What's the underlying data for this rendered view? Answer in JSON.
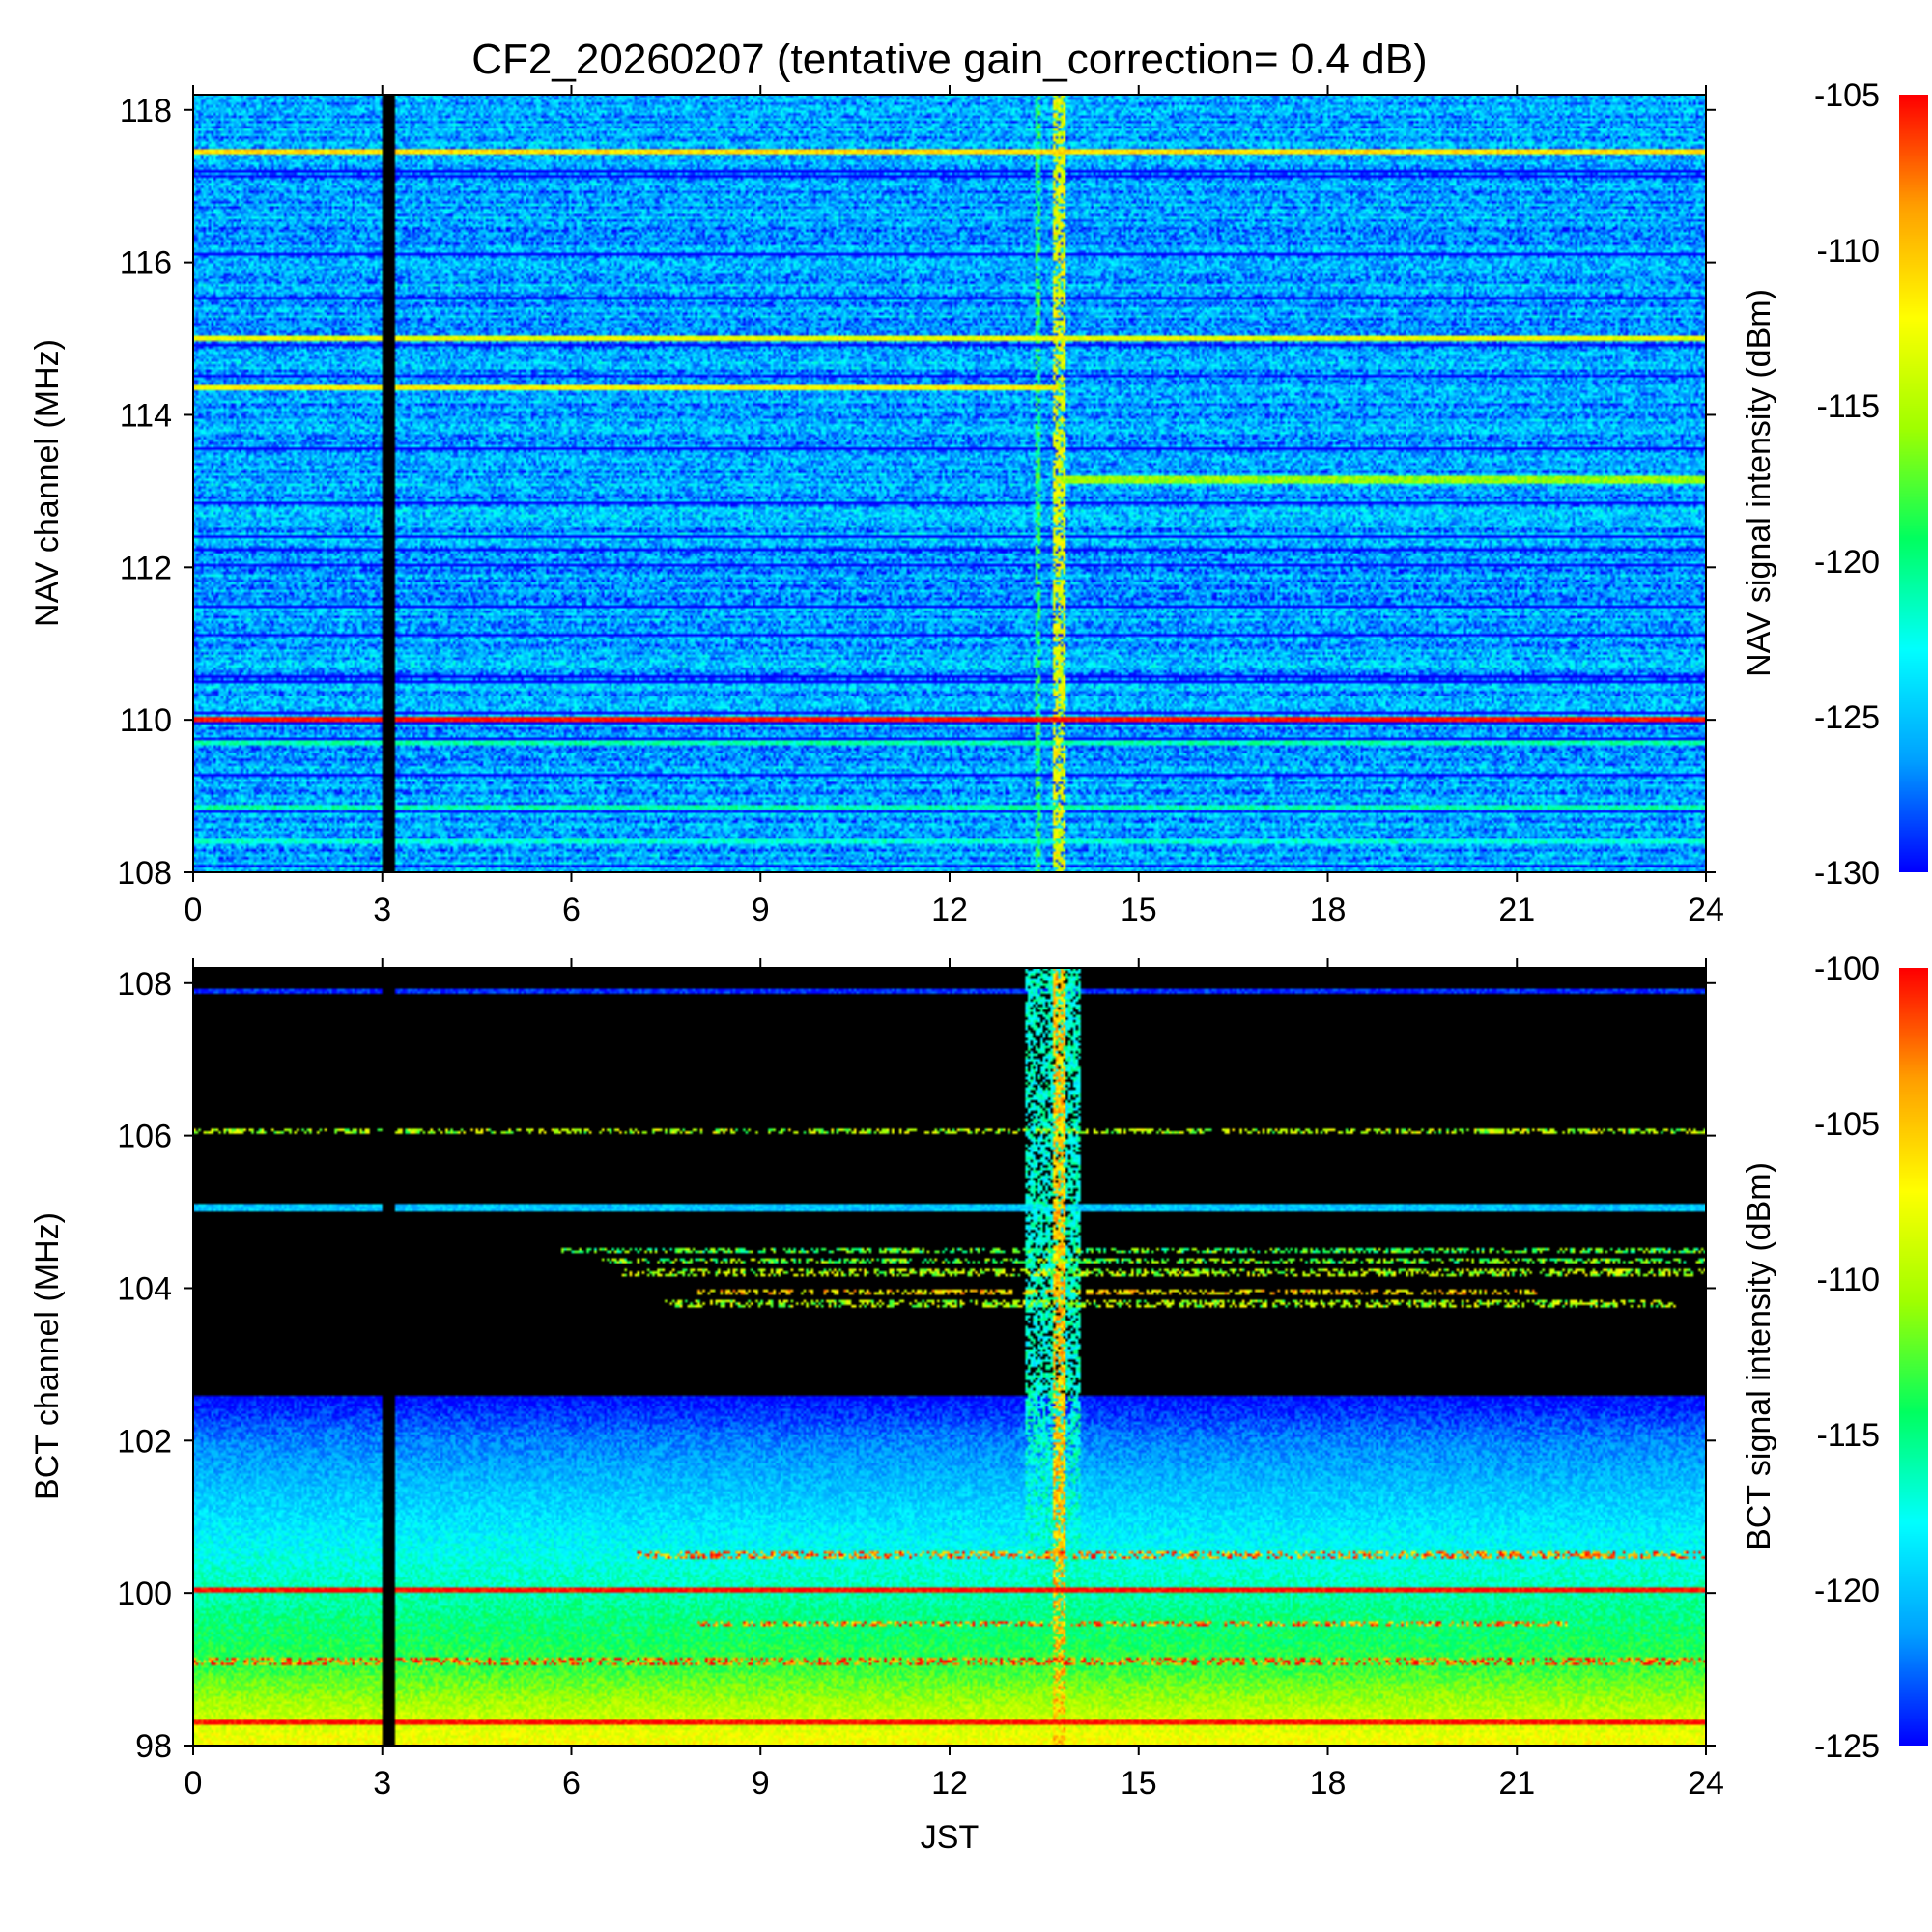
{
  "title": "CF2_20260207 (tentative gain_correction=  0.4 dB)",
  "colormap": [
    "#0000ff",
    "#00a0ff",
    "#00ffff",
    "#00ff60",
    "#a0ff00",
    "#ffff00",
    "#ffa000",
    "#ff0000"
  ],
  "chart_data": [
    {
      "type": "heatmap",
      "name": "NAV",
      "xlabel": "",
      "ylabel": "NAV channel (MHz)",
      "colorbar_label": "NAV signal intensity (dBm)",
      "xlim": [
        0,
        24
      ],
      "ylim": [
        108,
        118.2
      ],
      "xticks": [
        "0",
        "3",
        "6",
        "9",
        "12",
        "15",
        "18",
        "21",
        "24"
      ],
      "yticks": [
        "108",
        "110",
        "112",
        "114",
        "116",
        "118"
      ],
      "clim": [
        -130,
        -105
      ],
      "cticks": [
        "-130",
        "-125",
        "-120",
        "-115",
        "-110",
        "-105"
      ],
      "background_level": -126,
      "gaps": [
        {
          "x_start": 3.0,
          "x_end": 3.2
        }
      ],
      "persistent_lines": [
        {
          "freq": 110.0,
          "level": -105,
          "x_start": 0,
          "x_end": 24
        },
        {
          "freq": 114.35,
          "level": -112,
          "x_start": 0,
          "x_end": 13.7
        },
        {
          "freq": 115.0,
          "level": -113,
          "x_start": 0,
          "x_end": 24
        },
        {
          "freq": 117.45,
          "level": -111,
          "x_start": 0,
          "x_end": 24
        },
        {
          "freq": 113.15,
          "level": -116,
          "x_start": 13.7,
          "x_end": 24
        },
        {
          "freq": 109.7,
          "level": -121,
          "x_start": 0,
          "x_end": 24
        },
        {
          "freq": 108.85,
          "level": -121,
          "x_start": 0,
          "x_end": 24
        },
        {
          "freq": 108.4,
          "level": -122,
          "x_start": 0,
          "x_end": 24
        }
      ],
      "interference_bands": [
        {
          "x_start": 13.35,
          "x_end": 13.45,
          "level": -119
        },
        {
          "x_start": 13.65,
          "x_end": 13.85,
          "level": -113
        }
      ]
    },
    {
      "type": "heatmap",
      "name": "BCT",
      "xlabel": "JST",
      "ylabel": "BCT channel (MHz)",
      "colorbar_label": "BCT signal intensity (dBm)",
      "xlim": [
        0,
        24
      ],
      "ylim": [
        98,
        108.2
      ],
      "xticks": [
        "0",
        "3",
        "6",
        "9",
        "12",
        "15",
        "18",
        "21",
        "24"
      ],
      "yticks": [
        "98",
        "100",
        "102",
        "104",
        "106",
        "108"
      ],
      "clim": [
        -125,
        -100
      ],
      "cticks": [
        "-125",
        "-120",
        "-115",
        "-110",
        "-105",
        "-100"
      ],
      "gaps": [
        {
          "x_start": 3.0,
          "x_end": 3.2
        }
      ],
      "noise_floor_gradient": [
        {
          "freq": 98.0,
          "level": -107
        },
        {
          "freq": 99.0,
          "level": -113
        },
        {
          "freq": 100.0,
          "level": -116
        },
        {
          "freq": 101.0,
          "level": -119
        },
        {
          "freq": 102.0,
          "level": -122
        },
        {
          "freq": 102.6,
          "level": -125
        }
      ],
      "persistent_lines": [
        {
          "freq": 98.3,
          "level": -100,
          "x_start": 0,
          "x_end": 24
        },
        {
          "freq": 100.05,
          "level": -100,
          "x_start": 0,
          "x_end": 24
        },
        {
          "freq": 105.05,
          "level": -120,
          "x_start": 0,
          "x_end": 24
        },
        {
          "freq": 107.9,
          "level": -124,
          "x_start": 0,
          "x_end": 24
        }
      ],
      "intermittent_lines": [
        {
          "freq": 106.05,
          "level": -110,
          "x_start": 0,
          "x_end": 24
        },
        {
          "freq": 104.5,
          "level": -113,
          "x_start": 5.8,
          "x_end": 24
        },
        {
          "freq": 104.35,
          "level": -112,
          "x_start": 6.5,
          "x_end": 24
        },
        {
          "freq": 104.2,
          "level": -110,
          "x_start": 6.8,
          "x_end": 24
        },
        {
          "freq": 103.95,
          "level": -106,
          "x_start": 8.0,
          "x_end": 21.3
        },
        {
          "freq": 103.8,
          "level": -110,
          "x_start": 7.5,
          "x_end": 23.5
        },
        {
          "freq": 100.5,
          "level": -103,
          "x_start": 7.0,
          "x_end": 24
        },
        {
          "freq": 99.6,
          "level": -103,
          "x_start": 8.0,
          "x_end": 21.8
        },
        {
          "freq": 99.1,
          "level": -102,
          "x_start": 0,
          "x_end": 24
        }
      ],
      "interference_bands": [
        {
          "x_start": 13.2,
          "x_end": 14.1,
          "level": -117
        },
        {
          "x_start": 13.65,
          "x_end": 13.85,
          "level": -105
        }
      ]
    }
  ]
}
